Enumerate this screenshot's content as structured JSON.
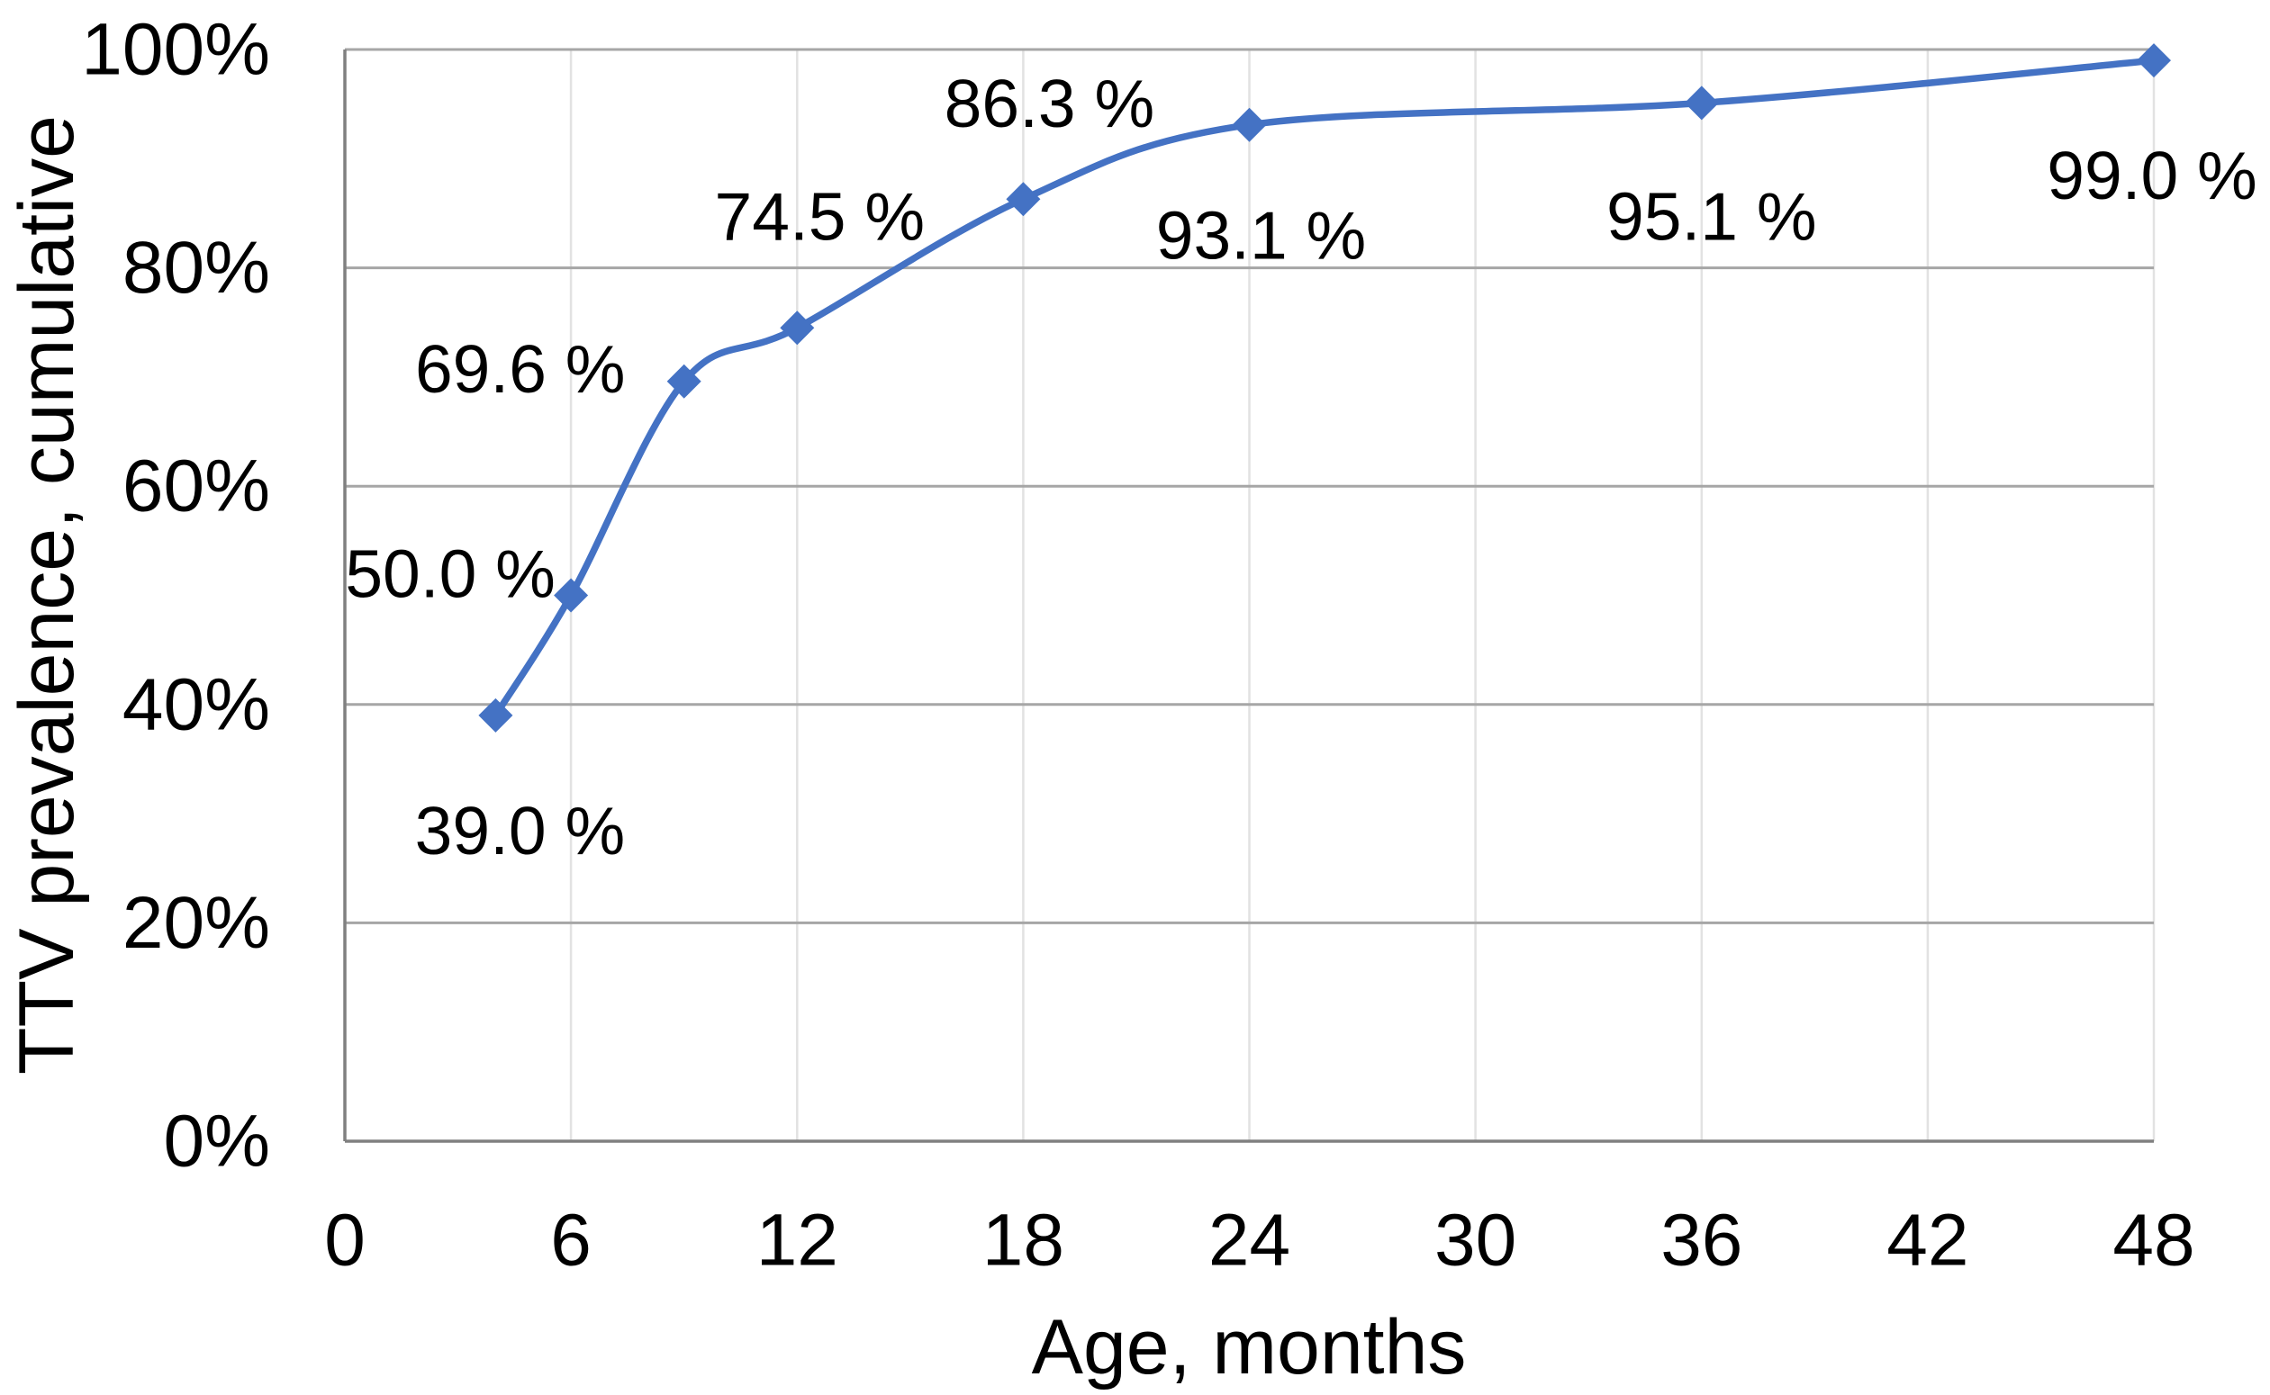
{
  "figure": {
    "background": "#FFFFFF"
  },
  "chart_data": {
    "type": "line",
    "title": "",
    "xlabel": "Age, months",
    "ylabel": "TTV prevalence, cumulative",
    "xlim": [
      0,
      48
    ],
    "ylim": [
      0,
      100
    ],
    "x_ticks": [
      0,
      6,
      12,
      18,
      24,
      30,
      36,
      42,
      48
    ],
    "y_ticks": [
      0,
      20,
      40,
      60,
      80,
      100
    ],
    "y_tick_suffix": "%",
    "grid": true,
    "legend_position": "none",
    "colors": {
      "series": "#4472C4",
      "horizontal_gridline": "#A6A6A6",
      "vertical_gridline": "#E2E2E2",
      "axis_line": "#808080",
      "text": "#000000"
    },
    "series": [
      {
        "name": "TTV prevalence, cumulative",
        "color": "#4472C4",
        "marker": "diamond",
        "smooth": true,
        "points": [
          {
            "x": 4,
            "y": 39.0,
            "label": "39.0 %",
            "label_offset": [
              27,
              128
            ]
          },
          {
            "x": 6,
            "y": 50.0,
            "label": "50.0 %",
            "label_offset": [
              -134,
              -24
            ]
          },
          {
            "x": 9,
            "y": 69.6,
            "label": "69.6 %",
            "label_offset": [
              -182,
              -14
            ]
          },
          {
            "x": 12,
            "y": 74.5,
            "label": "74.5 %",
            "label_offset": [
              25,
              -124
            ]
          },
          {
            "x": 18,
            "y": 86.3,
            "label": "86.3 %",
            "label_offset": [
              29,
              -106
            ]
          },
          {
            "x": 24,
            "y": 93.1,
            "label": "93.1 %",
            "label_offset": [
              13,
              123
            ]
          },
          {
            "x": 36,
            "y": 95.1,
            "label": "95.1 %",
            "label_offset": [
              11,
              126
            ]
          },
          {
            "x": 48,
            "y": 99.0,
            "label": "99.0 %",
            "label_offset": [
              -2,
              128
            ]
          }
        ]
      }
    ]
  }
}
